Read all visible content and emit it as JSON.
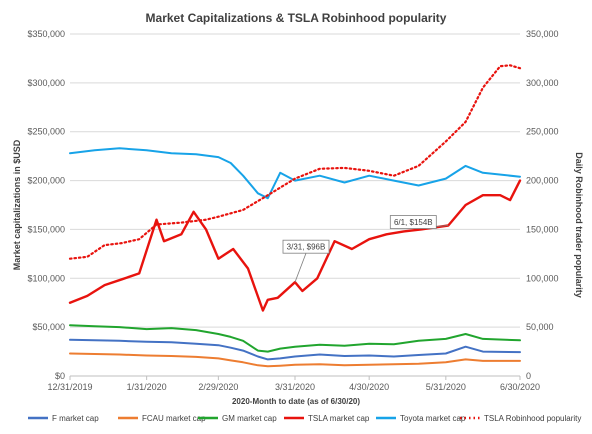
{
  "chart_data": {
    "type": "line",
    "title": "Market Capitalizations & TSLA Robinhood popularity",
    "xlabel": "2020-Month to date (as of 6/30/20)",
    "ylabel": "Market capitalizations in $USD",
    "y2label": "Daily Robinhood trader popularity",
    "x_ticks": [
      "12/31/2019",
      "1/31/2020",
      "2/29/2020",
      "3/31/2020",
      "4/30/2020",
      "5/31/2020",
      "6/30/2020"
    ],
    "y_ticks": [
      "$0",
      "$50,000",
      "$100,000",
      "$150,000",
      "$200,000",
      "$250,000",
      "$300,000",
      "$350,000"
    ],
    "y2_ticks": [
      "0",
      "50,000",
      "100,000",
      "150,000",
      "200,000",
      "250,000",
      "300,000",
      "350,000"
    ],
    "ylim": [
      0,
      350000
    ],
    "y2lim": [
      0,
      350000
    ],
    "x_range": [
      "2019-12-31",
      "2020-06-30"
    ],
    "grid": "horizontal",
    "legend_position": "bottom",
    "annotations": [
      {
        "label": "3/31, $96B",
        "x": "2020-03-31",
        "y": 96000
      },
      {
        "label": "6/1, $154B",
        "x": "2020-06-01",
        "y": 154000
      }
    ],
    "series": [
      {
        "name": "F market cap",
        "color": "#4472C4",
        "axis": "left",
        "style": "solid",
        "x": [
          "2019-12-31",
          "2020-01-10",
          "2020-01-20",
          "2020-01-31",
          "2020-02-10",
          "2020-02-20",
          "2020-02-29",
          "2020-03-05",
          "2020-03-10",
          "2020-03-16",
          "2020-03-20",
          "2020-03-25",
          "2020-03-31",
          "2020-04-10",
          "2020-04-20",
          "2020-04-30",
          "2020-05-10",
          "2020-05-20",
          "2020-05-31",
          "2020-06-08",
          "2020-06-15",
          "2020-06-30"
        ],
        "values": [
          37000,
          36500,
          36000,
          35000,
          34500,
          33000,
          31500,
          29000,
          26000,
          20000,
          17000,
          18000,
          20000,
          22000,
          20500,
          21000,
          20000,
          21500,
          23000,
          30000,
          25000,
          24500
        ]
      },
      {
        "name": "FCAU market cap",
        "color": "#ED7D31",
        "axis": "left",
        "style": "solid",
        "x": [
          "2019-12-31",
          "2020-01-10",
          "2020-01-20",
          "2020-01-31",
          "2020-02-10",
          "2020-02-20",
          "2020-02-29",
          "2020-03-05",
          "2020-03-10",
          "2020-03-16",
          "2020-03-20",
          "2020-03-25",
          "2020-03-31",
          "2020-04-10",
          "2020-04-20",
          "2020-04-30",
          "2020-05-10",
          "2020-05-20",
          "2020-05-31",
          "2020-06-08",
          "2020-06-15",
          "2020-06-30"
        ],
        "values": [
          23000,
          22500,
          22000,
          21000,
          20500,
          19500,
          18000,
          16000,
          14000,
          11000,
          10000,
          10500,
          11500,
          12000,
          11000,
          11500,
          12000,
          12500,
          14000,
          17000,
          15500,
          15500
        ]
      },
      {
        "name": "GM market cap",
        "color": "#21A52E",
        "axis": "left",
        "style": "solid",
        "x": [
          "2019-12-31",
          "2020-01-10",
          "2020-01-20",
          "2020-01-31",
          "2020-02-10",
          "2020-02-20",
          "2020-02-29",
          "2020-03-05",
          "2020-03-10",
          "2020-03-16",
          "2020-03-20",
          "2020-03-25",
          "2020-03-31",
          "2020-04-10",
          "2020-04-20",
          "2020-04-30",
          "2020-05-10",
          "2020-05-20",
          "2020-05-31",
          "2020-06-08",
          "2020-06-15",
          "2020-06-30"
        ],
        "values": [
          52000,
          51000,
          50000,
          48000,
          49000,
          47000,
          43000,
          40000,
          36000,
          26000,
          25000,
          28000,
          30000,
          32000,
          31000,
          33000,
          32500,
          36000,
          38000,
          43000,
          38000,
          36500
        ]
      },
      {
        "name": "TSLA market cap",
        "color": "#E8130E",
        "axis": "left",
        "style": "solid",
        "x": [
          "2019-12-31",
          "2020-01-07",
          "2020-01-14",
          "2020-01-21",
          "2020-01-28",
          "2020-02-04",
          "2020-02-07",
          "2020-02-14",
          "2020-02-19",
          "2020-02-24",
          "2020-02-29",
          "2020-03-06",
          "2020-03-12",
          "2020-03-18",
          "2020-03-20",
          "2020-03-24",
          "2020-03-31",
          "2020-04-03",
          "2020-04-09",
          "2020-04-16",
          "2020-04-23",
          "2020-04-30",
          "2020-05-07",
          "2020-05-14",
          "2020-05-21",
          "2020-06-01",
          "2020-06-08",
          "2020-06-15",
          "2020-06-22",
          "2020-06-26",
          "2020-06-30"
        ],
        "values": [
          75000,
          82000,
          93000,
          99000,
          105000,
          160000,
          138000,
          145000,
          168000,
          150000,
          120000,
          130000,
          110000,
          67000,
          78000,
          80000,
          96000,
          87000,
          100000,
          138000,
          130000,
          140000,
          145000,
          148000,
          150000,
          154000,
          175000,
          185000,
          185000,
          180000,
          200000
        ]
      },
      {
        "name": "Toyota market cap",
        "color": "#17A3E8",
        "axis": "left",
        "style": "solid",
        "x": [
          "2019-12-31",
          "2020-01-10",
          "2020-01-20",
          "2020-01-31",
          "2020-02-10",
          "2020-02-20",
          "2020-02-29",
          "2020-03-05",
          "2020-03-10",
          "2020-03-16",
          "2020-03-20",
          "2020-03-25",
          "2020-03-31",
          "2020-04-10",
          "2020-04-20",
          "2020-04-30",
          "2020-05-10",
          "2020-05-20",
          "2020-05-31",
          "2020-06-08",
          "2020-06-15",
          "2020-06-30"
        ],
        "values": [
          228000,
          231000,
          233000,
          231000,
          228000,
          227000,
          224000,
          218000,
          205000,
          187000,
          182000,
          208000,
          200000,
          205000,
          198000,
          205000,
          200000,
          195000,
          202000,
          215000,
          208000,
          204000
        ]
      },
      {
        "name": "TSLA Robinhood popularity",
        "color": "#E8130E",
        "axis": "right",
        "style": "dotted",
        "x": [
          "2019-12-31",
          "2020-01-07",
          "2020-01-14",
          "2020-01-21",
          "2020-01-28",
          "2020-02-04",
          "2020-02-14",
          "2020-02-24",
          "2020-02-29",
          "2020-03-10",
          "2020-03-20",
          "2020-03-31",
          "2020-04-10",
          "2020-04-20",
          "2020-04-30",
          "2020-05-10",
          "2020-05-20",
          "2020-05-31",
          "2020-06-08",
          "2020-06-15",
          "2020-06-22",
          "2020-06-26",
          "2020-06-30"
        ],
        "values": [
          120000,
          122000,
          134000,
          136000,
          140000,
          155000,
          157000,
          160000,
          163000,
          170000,
          185000,
          202000,
          212000,
          213000,
          210000,
          205000,
          215000,
          240000,
          260000,
          295000,
          317000,
          318000,
          315000
        ]
      }
    ]
  }
}
